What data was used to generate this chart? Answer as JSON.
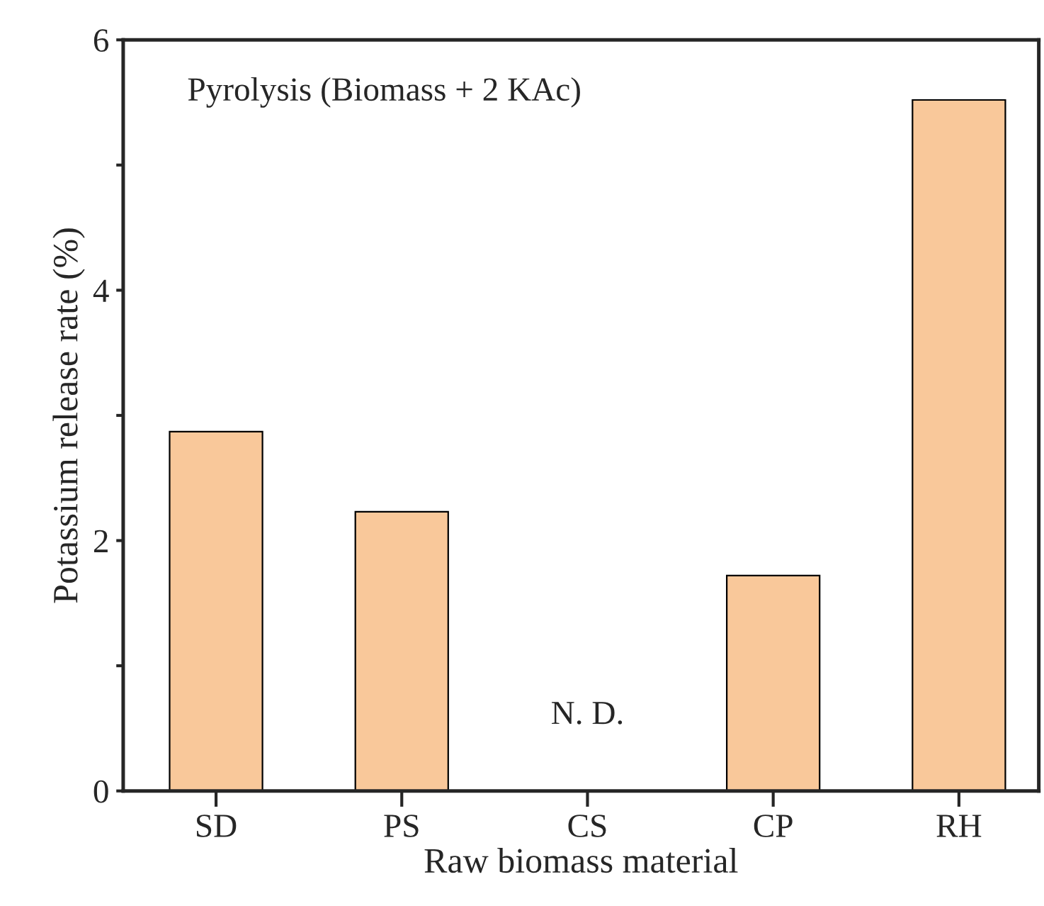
{
  "chart_data": {
    "type": "bar",
    "xlabel": "Raw biomass material",
    "ylabel": "Potassium release rate (%)",
    "categories": [
      "SD",
      "PS",
      "CS",
      "CP",
      "RH"
    ],
    "values": [
      2.87,
      2.23,
      null,
      1.72,
      5.52
    ],
    "color": "#f9c89a",
    "ylim": [
      0,
      6
    ],
    "yticks": [
      0,
      {
        "value": 1,
        "label": null
      },
      2,
      {
        "value": 3,
        "label": null
      },
      4,
      {
        "value": 5,
        "label": null
      },
      6
    ],
    "annotations": [
      "Pyrolysis (Biomass + 2 KAc)",
      "N. D."
    ],
    "grid": false,
    "legend": false
  }
}
